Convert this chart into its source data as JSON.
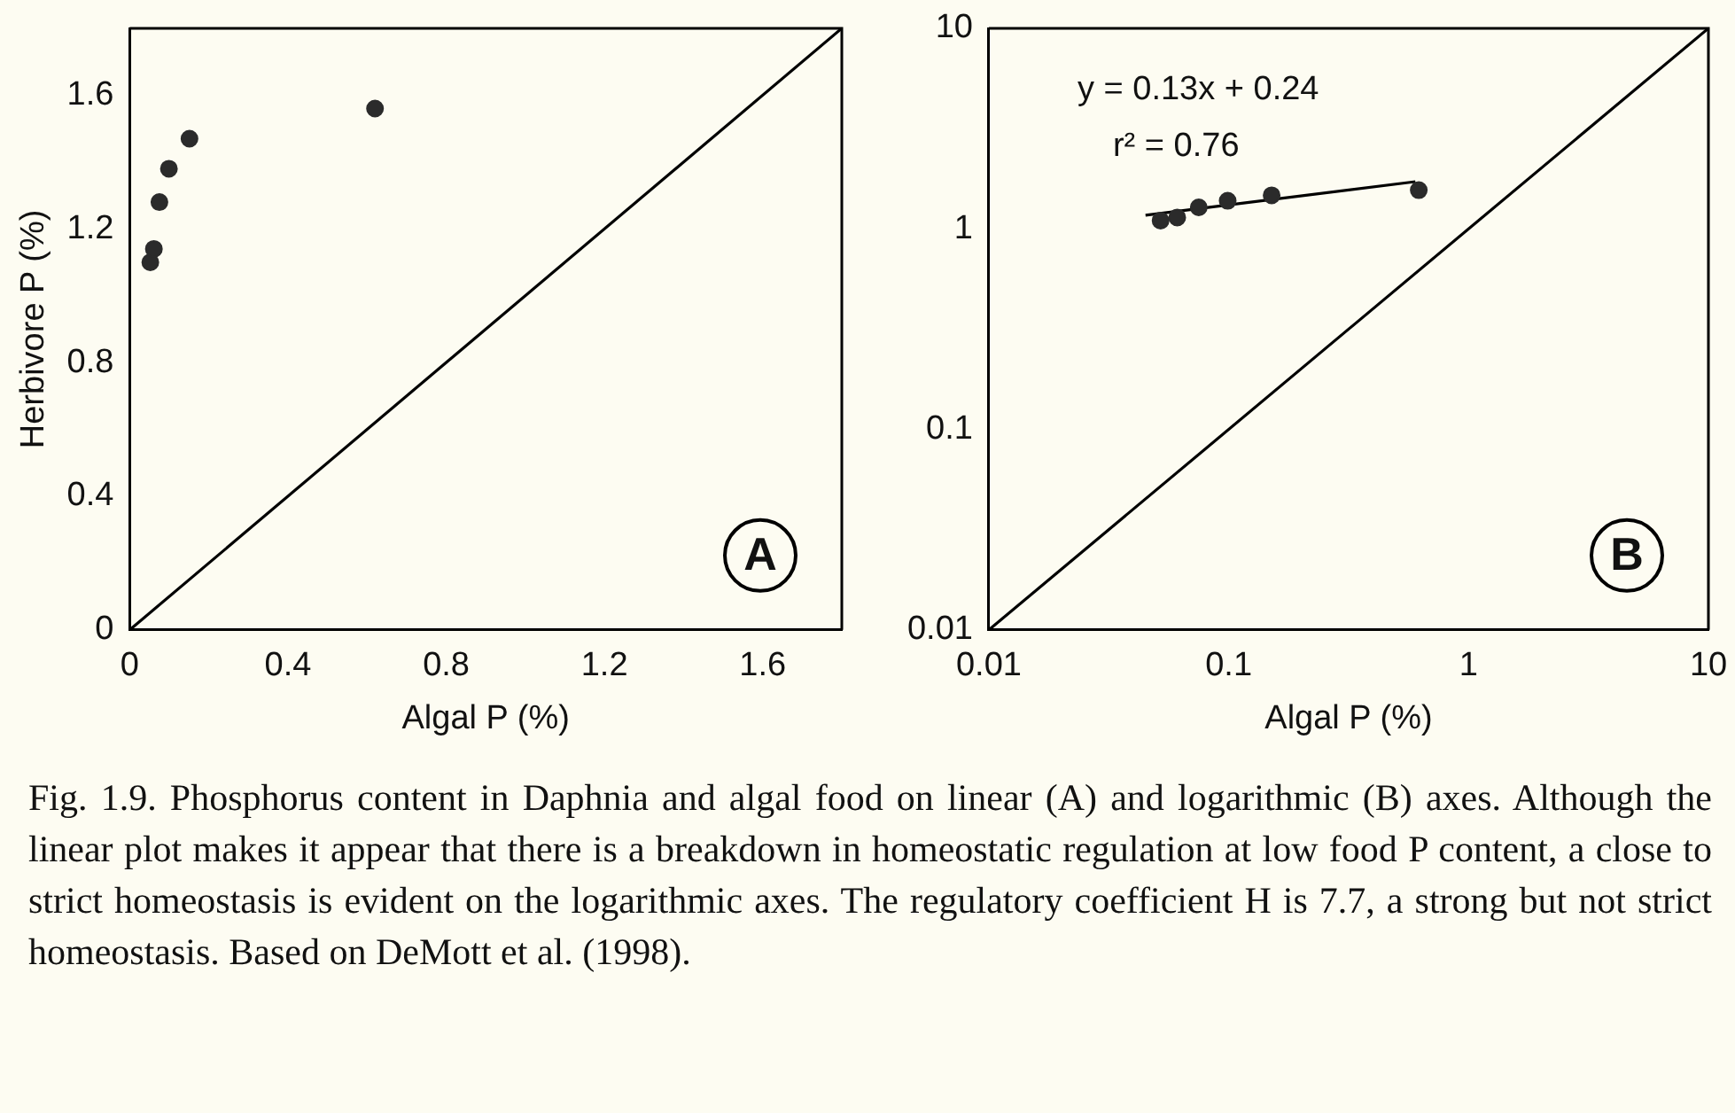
{
  "chart_data": [
    {
      "type": "scatter",
      "xlabel": "Algal P (%)",
      "ylabel": "Herbivore P (%)",
      "xlim": [
        0,
        1.8
      ],
      "ylim": [
        0,
        1.8
      ],
      "xticks": [
        0,
        0.4,
        0.8,
        1.2,
        1.6
      ],
      "yticks": [
        0,
        0.4,
        0.8,
        1.2,
        1.6
      ],
      "grid": false,
      "legend": false,
      "x": [
        0.052,
        0.061,
        0.075,
        0.099,
        0.151,
        0.62
      ],
      "series": [
        {
          "color": "#2b2b2b",
          "marker": "circle",
          "values": [
            1.1,
            1.14,
            1.28,
            1.38,
            1.47,
            1.56
          ]
        },
        {
          "type": "line",
          "marker": "none",
          "color": "#000000",
          "x": [
            0,
            1.8
          ],
          "values": [
            0,
            1.8
          ]
        }
      ],
      "annotations": [
        "A",
        "Fig. 1.9. Phosphorus content in Daphnia and algal food on linear (A) and logarithmic (B) axes. Although the linear plot makes it appear that there is a breakdown in homeostatic regulation at low food P content, a close to strict homeostasis is evident on the logarithmic axes. The regulatory coefficient H is 7.7, a strong but not strict homeostasis. Based on DeMott et al. (1998)."
      ]
    },
    {
      "type": "scatter",
      "xlabel": "Algal P (%)",
      "log": "xy",
      "xlim": [
        0.01,
        10
      ],
      "ylim": [
        0.01,
        10
      ],
      "xticks": [
        0.01,
        0.1,
        1,
        10
      ],
      "yticks": [
        0.01,
        0.1,
        1,
        10
      ],
      "grid": false,
      "legend": false,
      "x": [
        0.052,
        0.061,
        0.075,
        0.099,
        0.151,
        0.62
      ],
      "series": [
        {
          "color": "#2b2b2b",
          "marker": "circle",
          "values": [
            1.1,
            1.14,
            1.28,
            1.38,
            1.47,
            1.56
          ]
        },
        {
          "type": "line",
          "marker": "none",
          "color": "#000000",
          "x": [
            0.045,
            0.6
          ],
          "values": [
            1.17,
            1.72
          ]
        },
        {
          "type": "line",
          "marker": "none",
          "color": "#000000",
          "x": [
            0.01,
            10
          ],
          "values": [
            0.01,
            10
          ]
        }
      ],
      "annotations": [
        "B",
        "y = 0.13x + 0.24",
        "r² = 0.76"
      ]
    }
  ]
}
